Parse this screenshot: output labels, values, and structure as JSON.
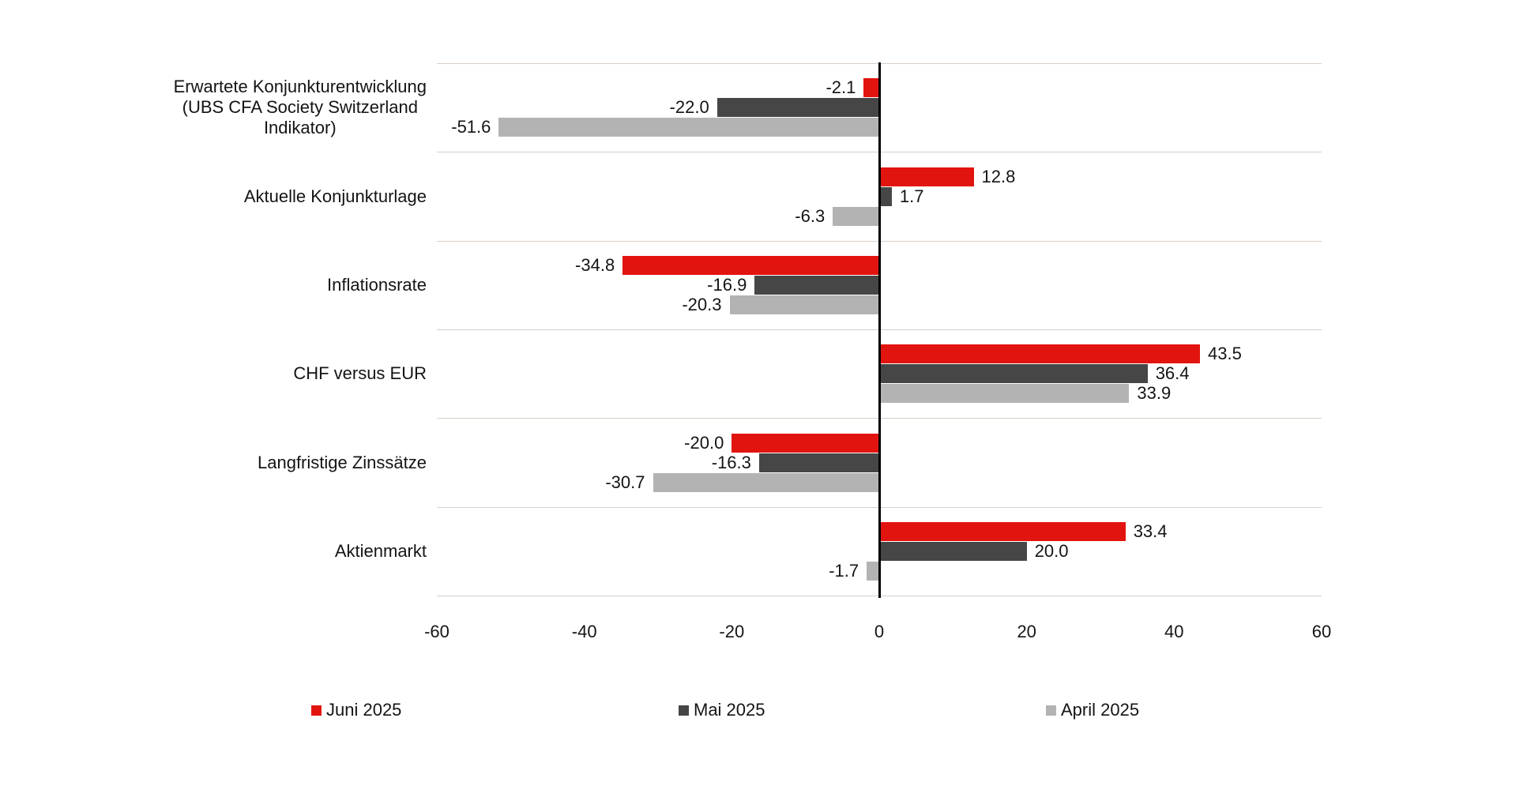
{
  "chart_data": {
    "type": "bar",
    "orientation": "horizontal",
    "categories": [
      "Erwartete Konjunkturentwicklung (UBS CFA Society Switzerland Indikator)",
      "Aktuelle Konjunkturlage",
      "Inflationsrate",
      "CHF versus EUR",
      "Langfristige Zinssätze",
      "Aktienmarkt"
    ],
    "category_lines": [
      [
        "Erwartete Konjunkturentwicklung",
        "(UBS CFA Society Switzerland",
        "Indikator)"
      ],
      [
        "Aktuelle Konjunkturlage"
      ],
      [
        "Inflationsrate"
      ],
      [
        "CHF versus EUR"
      ],
      [
        "Langfristige Zinssätze"
      ],
      [
        "Aktienmarkt"
      ]
    ],
    "series": [
      {
        "name": "Juni 2025",
        "color": "#e2140f",
        "values": [
          -2.1,
          12.8,
          -34.8,
          43.5,
          -20.0,
          33.4
        ]
      },
      {
        "name": "Mai 2025",
        "color": "#464646",
        "values": [
          -22.0,
          1.7,
          -16.9,
          36.4,
          -16.3,
          20.0
        ]
      },
      {
        "name": "April 2025",
        "color": "#b3b3b3",
        "values": [
          -51.6,
          -6.3,
          -20.3,
          33.9,
          -30.7,
          -1.7
        ]
      }
    ],
    "xlim": [
      -60,
      60
    ],
    "x_tick_labels": [
      "-60",
      "-40",
      "-20",
      "0",
      "20",
      "40",
      "60"
    ],
    "x_tick_values": [
      -60,
      -40,
      -20,
      0,
      20,
      40,
      60
    ],
    "value_label_decimals": 1,
    "grid": "horizontal category separators",
    "legend_position": "bottom"
  },
  "colors": {
    "background": "#ffffff",
    "gridline": "#d8cfc8",
    "zero_line": "#000000",
    "label_text": "#141414"
  }
}
